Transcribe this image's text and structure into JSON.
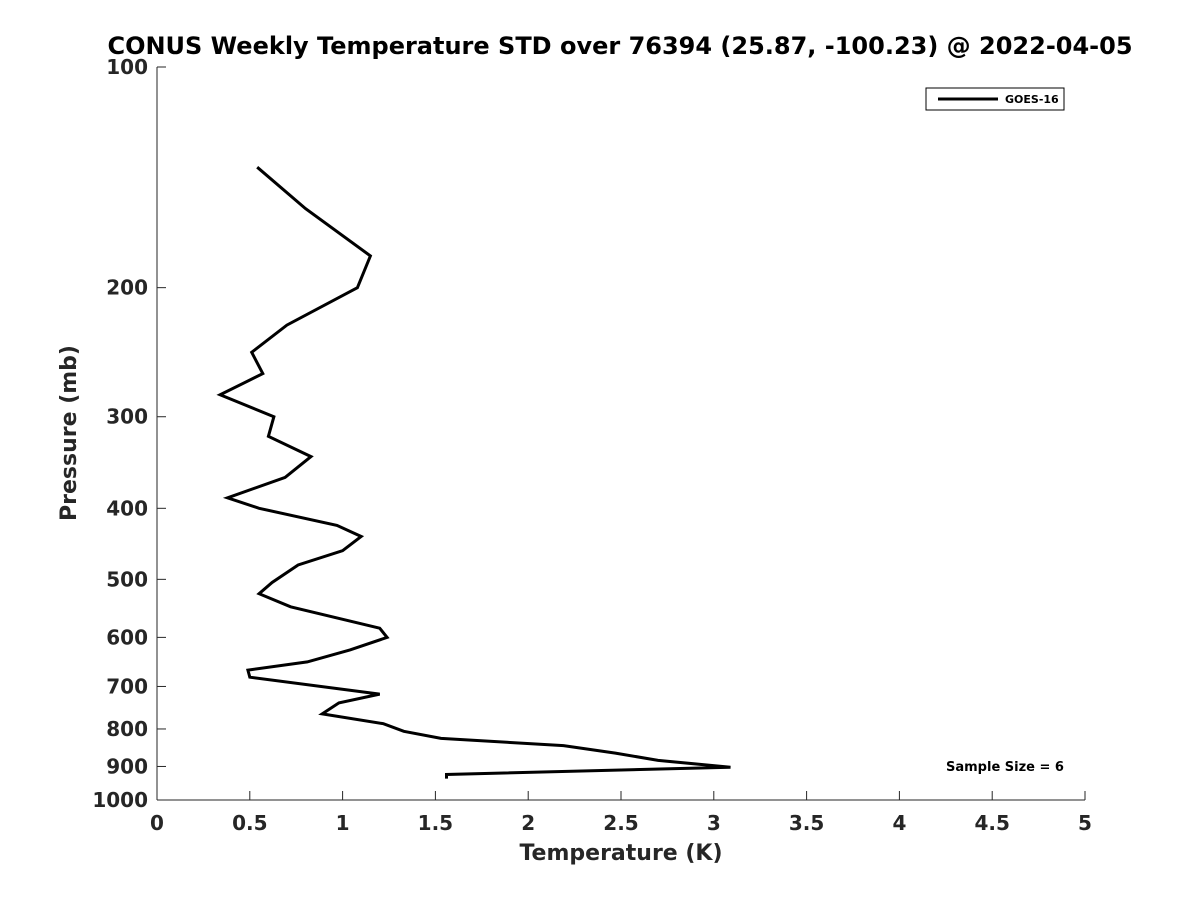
{
  "chart_data": {
    "type": "line",
    "title": "CONUS Weekly Temperature STD over 76394 (25.87, -100.23) @ 2022-04-05",
    "xlabel": "Temperature (K)",
    "ylabel": "Pressure (mb)",
    "xlim": [
      0,
      5
    ],
    "ylim": [
      100,
      1000
    ],
    "y_scale": "log",
    "y_reversed": true,
    "x_ticks": [
      "0",
      "0.5",
      "1",
      "1.5",
      "2",
      "2.5",
      "3",
      "3.5",
      "4",
      "4.5",
      "5"
    ],
    "x_tick_values": [
      0,
      0.5,
      1,
      1.5,
      2,
      2.5,
      3,
      3.5,
      4,
      4.5,
      5
    ],
    "y_ticks": [
      "100",
      "200",
      "300",
      "400",
      "500",
      "600",
      "700",
      "800",
      "900",
      "1000"
    ],
    "y_tick_values": [
      100,
      200,
      300,
      400,
      500,
      600,
      700,
      800,
      900,
      1000
    ],
    "grid": false,
    "legend_position": "top-right",
    "line_color": "#000000",
    "series": [
      {
        "name": "GOES-16",
        "points": [
          [
            0.54,
            137
          ],
          [
            0.8,
            156
          ],
          [
            1.15,
            181
          ],
          [
            1.08,
            200
          ],
          [
            0.7,
            225
          ],
          [
            0.51,
            245
          ],
          [
            0.57,
            262
          ],
          [
            0.34,
            280
          ],
          [
            0.63,
            300
          ],
          [
            0.6,
            319
          ],
          [
            0.83,
            340
          ],
          [
            0.69,
            363
          ],
          [
            0.38,
            387
          ],
          [
            0.55,
            400
          ],
          [
            0.97,
            422
          ],
          [
            1.1,
            437
          ],
          [
            1.0,
            457
          ],
          [
            0.76,
            478
          ],
          [
            0.62,
            505
          ],
          [
            0.55,
            523
          ],
          [
            0.72,
            545
          ],
          [
            1.2,
            583
          ],
          [
            1.24,
            600
          ],
          [
            1.04,
            624
          ],
          [
            0.81,
            648
          ],
          [
            0.49,
            665
          ],
          [
            0.5,
            680
          ],
          [
            1.2,
            717
          ],
          [
            0.98,
            737
          ],
          [
            0.89,
            763
          ],
          [
            1.22,
            787
          ],
          [
            1.33,
            806
          ],
          [
            1.53,
            824
          ],
          [
            2.19,
            843
          ],
          [
            2.47,
            863
          ],
          [
            2.7,
            883
          ],
          [
            3.09,
            902
          ],
          [
            1.56,
            923
          ],
          [
            1.56,
            935
          ]
        ]
      }
    ],
    "annotation": "Sample Size = 6"
  }
}
